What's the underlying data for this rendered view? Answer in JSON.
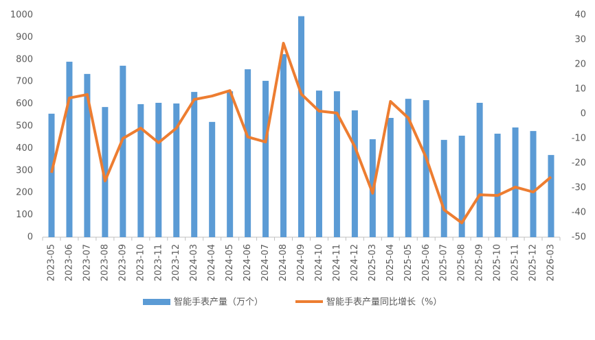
{
  "chart_data": {
    "type": "bar-line",
    "categories": [
      "2023-05",
      "2023-06",
      "2023-07",
      "2023-08",
      "2023-09",
      "2023-10",
      "2023-11",
      "2023-12",
      "2024-03",
      "2024-04",
      "2024-05",
      "2024-06",
      "2024-07",
      "2024-08",
      "2024-09",
      "2024-10",
      "2024-11",
      "2024-12",
      "2025-03",
      "2025-04",
      "2025-05",
      "2025-06",
      "2025-07",
      "2025-08",
      "2025-09",
      "2025-10",
      "2025-11",
      "2025-12",
      "2026-03"
    ],
    "series": [
      {
        "name": "智能手表产量（万个）",
        "type": "bar",
        "color": "#5b9bd5",
        "values": [
          556,
          790,
          735,
          586,
          772,
          599,
          605,
          602,
          654,
          519,
          657,
          756,
          704,
          824,
          995,
          660,
          657,
          571,
          441,
          537,
          623,
          617,
          438,
          457,
          605,
          466,
          494,
          478,
          370
        ]
      },
      {
        "name": "智能手表产量同比增长（%）",
        "type": "line",
        "axis": "y2",
        "color": "#ed7d31",
        "values": [
          -23.9,
          6.4,
          7.8,
          -27.2,
          -10,
          -5.8,
          -11.7,
          -5.8,
          5.8,
          7.2,
          9.4,
          -9.4,
          -11.4,
          28.6,
          8,
          1.1,
          0.3,
          -13.3,
          -32.2,
          5,
          -1.7,
          -17.8,
          -38.9,
          -44.2,
          -32.8,
          -33.1,
          -29.7,
          -31.7,
          -25.6
        ]
      }
    ],
    "ylim": [
      0,
      1000
    ],
    "yticks": [
      0,
      100,
      200,
      300,
      400,
      500,
      600,
      700,
      800,
      900,
      1000
    ],
    "y2lim": [
      -50,
      40
    ],
    "y2ticks": [
      -50,
      -40,
      -30,
      -20,
      -10,
      0,
      10,
      20,
      30,
      40
    ],
    "grid": false,
    "legend": "bottom"
  }
}
